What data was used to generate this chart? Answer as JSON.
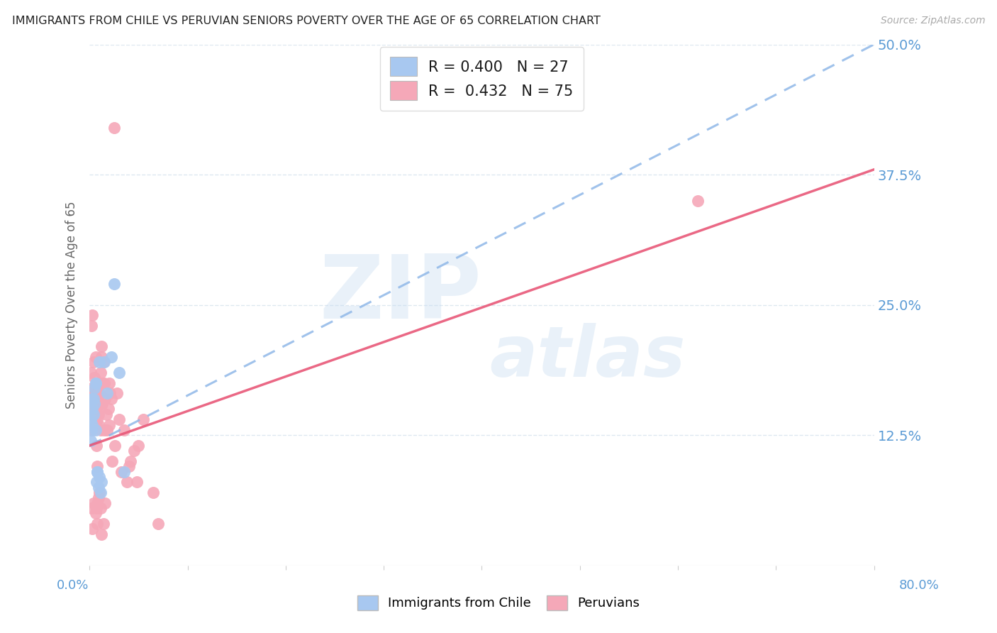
{
  "title": "IMMIGRANTS FROM CHILE VS PERUVIAN SENIORS POVERTY OVER THE AGE OF 65 CORRELATION CHART",
  "source": "Source: ZipAtlas.com",
  "ylabel": "Seniors Poverty Over the Age of 65",
  "watermark_line1": "ZIP",
  "watermark_line2": "atlas",
  "xlim": [
    0,
    0.8
  ],
  "ylim": [
    0,
    0.5
  ],
  "yticks": [
    0.125,
    0.25,
    0.375,
    0.5
  ],
  "ytick_labels": [
    "12.5%",
    "25.0%",
    "37.5%",
    "50.0%"
  ],
  "chile_color": "#a8c8f0",
  "peru_color": "#f5a8b8",
  "chile_line_color": "#90b8e8",
  "peru_line_color": "#e85878",
  "axis_label_color": "#5b9bd5",
  "background_color": "#ffffff",
  "grid_color": "#dde8f0",
  "chile_trend_start_y": 0.115,
  "chile_trend_end_y": 0.5,
  "peru_trend_start_y": 0.115,
  "peru_trend_end_y": 0.38,
  "chile_scatter_x": [
    0.001,
    0.001,
    0.002,
    0.002,
    0.003,
    0.003,
    0.004,
    0.004,
    0.005,
    0.005,
    0.006,
    0.006,
    0.007,
    0.008,
    0.009,
    0.01,
    0.011,
    0.012,
    0.015,
    0.018,
    0.022,
    0.025,
    0.03,
    0.035,
    0.01,
    0.008,
    0.006
  ],
  "chile_scatter_y": [
    0.14,
    0.12,
    0.16,
    0.13,
    0.15,
    0.135,
    0.145,
    0.16,
    0.155,
    0.17,
    0.13,
    0.175,
    0.08,
    0.09,
    0.075,
    0.085,
    0.07,
    0.08,
    0.195,
    0.165,
    0.2,
    0.27,
    0.185,
    0.09,
    0.195,
    0.09,
    0.175
  ],
  "peru_scatter_x": [
    0.001,
    0.001,
    0.002,
    0.002,
    0.002,
    0.003,
    0.003,
    0.003,
    0.004,
    0.004,
    0.004,
    0.005,
    0.005,
    0.005,
    0.006,
    0.006,
    0.006,
    0.007,
    0.007,
    0.007,
    0.008,
    0.008,
    0.008,
    0.009,
    0.009,
    0.01,
    0.01,
    0.01,
    0.011,
    0.011,
    0.012,
    0.012,
    0.013,
    0.013,
    0.014,
    0.015,
    0.015,
    0.016,
    0.017,
    0.018,
    0.019,
    0.02,
    0.021,
    0.022,
    0.023,
    0.025,
    0.026,
    0.028,
    0.03,
    0.032,
    0.035,
    0.038,
    0.04,
    0.042,
    0.045,
    0.048,
    0.05,
    0.055,
    0.065,
    0.07,
    0.008,
    0.012,
    0.006,
    0.004,
    0.003,
    0.002,
    0.007,
    0.008,
    0.009,
    0.01,
    0.011,
    0.014,
    0.016,
    0.62,
    0.02
  ],
  "peru_scatter_y": [
    0.165,
    0.185,
    0.17,
    0.23,
    0.145,
    0.155,
    0.24,
    0.13,
    0.15,
    0.165,
    0.195,
    0.145,
    0.16,
    0.18,
    0.2,
    0.135,
    0.155,
    0.15,
    0.17,
    0.115,
    0.095,
    0.14,
    0.165,
    0.135,
    0.145,
    0.165,
    0.175,
    0.155,
    0.185,
    0.13,
    0.2,
    0.21,
    0.155,
    0.175,
    0.195,
    0.175,
    0.13,
    0.16,
    0.145,
    0.13,
    0.15,
    0.175,
    0.165,
    0.16,
    0.1,
    0.42,
    0.115,
    0.165,
    0.14,
    0.09,
    0.13,
    0.08,
    0.095,
    0.1,
    0.11,
    0.08,
    0.115,
    0.14,
    0.07,
    0.04,
    0.04,
    0.03,
    0.05,
    0.06,
    0.035,
    0.055,
    0.055,
    0.06,
    0.065,
    0.07,
    0.055,
    0.04,
    0.06,
    0.35,
    0.135
  ]
}
